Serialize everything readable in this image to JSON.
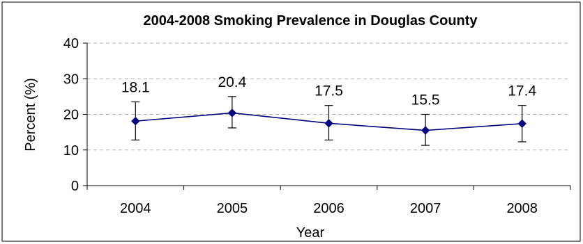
{
  "chart_data": {
    "type": "line",
    "title": "2004-2008 Smoking Prevalence in Douglas County",
    "xlabel": "Year",
    "ylabel": "Percent (%)",
    "categories": [
      "2004",
      "2005",
      "2006",
      "2007",
      "2008"
    ],
    "series": [
      {
        "values": [
          18.1,
          20.4,
          17.5,
          15.5,
          17.4
        ],
        "error_low": [
          12.8,
          16.2,
          12.8,
          11.3,
          12.3
        ],
        "error_high": [
          23.5,
          25.0,
          22.5,
          20.0,
          22.5
        ],
        "data_labels": [
          "18.1",
          "20.4",
          "17.5",
          "15.5",
          "17.4"
        ],
        "color": "#000080"
      }
    ],
    "ylim": [
      0,
      40
    ],
    "yticks": [
      0,
      10,
      20,
      30,
      40
    ],
    "ytick_labels": [
      "0",
      "10",
      "20",
      "30",
      "40"
    ],
    "grid": "horizontal dashed",
    "legend": "none"
  }
}
